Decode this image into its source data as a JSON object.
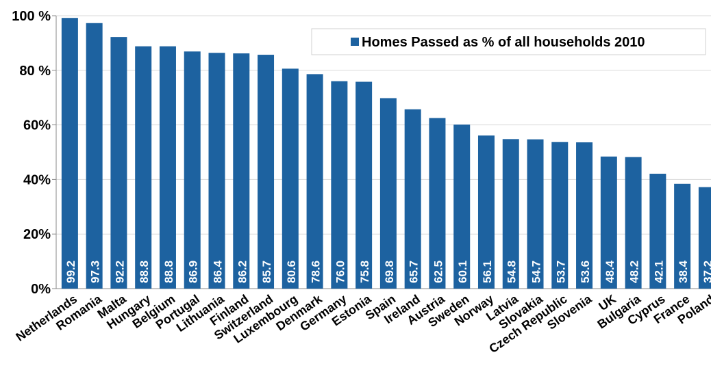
{
  "chart_data": {
    "type": "bar",
    "categories": [
      "Netherlands",
      "Romania",
      "Malta",
      "Hungary",
      "Belgium",
      "Portugal",
      "Lithuania",
      "Finland",
      "Switzerland",
      "Luxembourg",
      "Denmark",
      "Germany",
      "Estonia",
      "Spain",
      "Ireland",
      "Austria",
      "Sweden",
      "Norway",
      "Latvia",
      "Slovakia",
      "Czech Republic",
      "Slovenia",
      "UK",
      "Bulgaria",
      "Cyprus",
      "France",
      "Poland"
    ],
    "series": [
      {
        "name": "Homes Passed as % of all households 2010",
        "color": "#1d62a0",
        "values": [
          99.2,
          97.3,
          92.2,
          88.8,
          88.8,
          86.9,
          86.4,
          86.2,
          85.7,
          80.6,
          78.6,
          76.0,
          75.8,
          69.8,
          65.7,
          62.5,
          60.1,
          56.1,
          54.8,
          54.7,
          53.7,
          53.6,
          48.4,
          48.2,
          42.1,
          38.4,
          37.2
        ],
        "value_labels": [
          "99.2",
          "97.3",
          "92.2",
          "88.8",
          "88.8",
          "86.9",
          "86.4",
          "86.2",
          "85.7",
          "80.6",
          "78.6",
          "76.0",
          "75.8",
          "69.8",
          "65.7",
          "62.5",
          "60.1",
          "56.1",
          "54.8",
          "54.7",
          "53.7",
          "53.6",
          "48.4",
          "48.2",
          "42.1",
          "38.4",
          "37.2"
        ]
      }
    ],
    "ylim": [
      0,
      100
    ],
    "yticks": [
      {
        "value": 0,
        "label": "0%"
      },
      {
        "value": 20,
        "label": "20%"
      },
      {
        "value": 40,
        "label": "40%"
      },
      {
        "value": 60,
        "label": "60%"
      },
      {
        "value": 80,
        "label": "80 %"
      },
      {
        "value": 100,
        "label": "100 %"
      }
    ],
    "grid": true,
    "legend": "top-right"
  }
}
